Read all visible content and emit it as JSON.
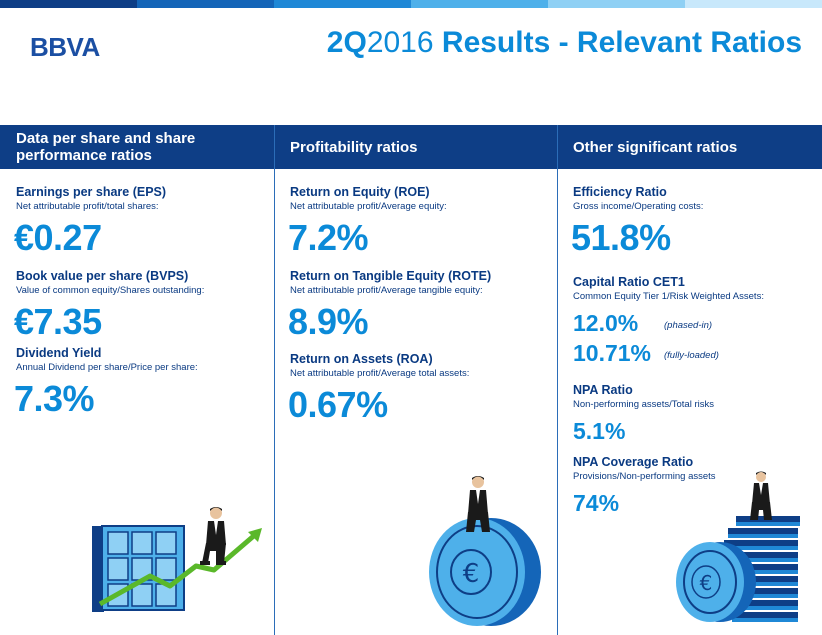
{
  "header": {
    "logo": "BBVA",
    "title_q": "2Q",
    "title_year": "2016",
    "title_rest": " Results - Relevant Ratios"
  },
  "colors": {
    "navy": "#0e3e86",
    "accent_blue": "#0b8ad8",
    "text_navy": "#0a3a82",
    "top_bar": [
      "#0e3e86",
      "#1465b8",
      "#1f88d6",
      "#4eb0ea",
      "#8fd0f4",
      "#c8e8fb"
    ]
  },
  "columns": [
    {
      "heading": "Data per share and share performance ratios",
      "metrics": [
        {
          "title": "Earnings per share (EPS)",
          "sub": "Net attributable profit/total shares:",
          "value": "€0.27"
        },
        {
          "title": "Book value per share (BVPS)",
          "sub": "Value of common equity/Shares outstanding:",
          "value": "€7.35"
        },
        {
          "title": "Dividend Yield",
          "sub": "Annual Dividend per share/Price per share:",
          "value": "7.3%"
        }
      ]
    },
    {
      "heading": "Profitability ratios",
      "metrics": [
        {
          "title": "Return on Equity (ROE)",
          "sub": "Net attributable profit/Average equity:",
          "value": "7.2%"
        },
        {
          "title": "Return on Tangible Equity (ROTE)",
          "sub": "Net attributable profit/Average tangible equity:",
          "value": "8.9%"
        },
        {
          "title": "Return on Assets (ROA)",
          "sub": "Net attributable profit/Average total assets:",
          "value": "0.67%"
        }
      ]
    },
    {
      "heading": "Other significant ratios",
      "metrics": [
        {
          "title": "Efficiency Ratio",
          "sub": "Gross income/Operating costs:",
          "value": "51.8%"
        },
        {
          "title": "Capital Ratio CET1",
          "sub": "Common Equity Tier 1/Risk Weighted Assets:",
          "value": "12.0%",
          "note": "(phased-in)",
          "value2": "10.71%",
          "note2": "(fully-loaded)"
        },
        {
          "title": "NPA Ratio",
          "sub": "Non-performing assets/Total risks",
          "value": "5.1%"
        },
        {
          "title": "NPA Coverage Ratio",
          "sub": "Provisions/Non-performing assets",
          "value": "74%"
        }
      ]
    }
  ],
  "icons": [
    "building-chart-icon",
    "growth-arrow-icon",
    "euro-coin-icon",
    "coin-stacks-icon",
    "businessman-icon"
  ]
}
